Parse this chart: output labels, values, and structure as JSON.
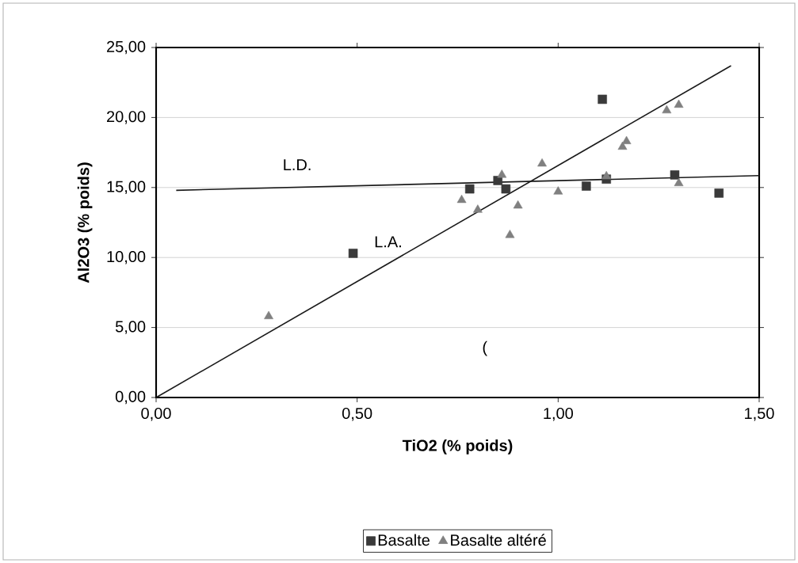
{
  "chart_data": {
    "type": "scatter",
    "xlabel": "TiO2 (% poids)",
    "ylabel": "Al2O3 (% poids)",
    "xlim": [
      0,
      1.5
    ],
    "ylim": [
      0,
      25
    ],
    "xticks": [
      {
        "value": 0,
        "label": "0,00"
      },
      {
        "value": 0.5,
        "label": "0,50"
      },
      {
        "value": 1,
        "label": "1,00"
      },
      {
        "value": 1.5,
        "label": "1,50"
      }
    ],
    "yticks": [
      {
        "value": 0,
        "label": "0,00"
      },
      {
        "value": 5,
        "label": "5,00"
      },
      {
        "value": 10,
        "label": "10,00"
      },
      {
        "value": 15,
        "label": "15,00"
      },
      {
        "value": 20,
        "label": "20,00"
      },
      {
        "value": 25,
        "label": "25,00"
      }
    ],
    "grid": "y",
    "legend": "bottom",
    "series": [
      {
        "name": "Basalte",
        "color": "#3a3a3a",
        "marker": "square",
        "x": [
          0.49,
          0.78,
          0.85,
          0.87,
          1.07,
          1.12,
          1.29,
          1.4,
          1.11
        ],
        "values": [
          10.3,
          14.9,
          15.5,
          14.9,
          15.1,
          15.6,
          15.9,
          14.6,
          21.3
        ]
      },
      {
        "name": "Basalte altéré",
        "color": "#808080",
        "marker": "triangle",
        "x": [
          0.28,
          0.76,
          0.8,
          0.86,
          0.88,
          0.9,
          0.96,
          1.0,
          1.12,
          1.16,
          1.17,
          1.27,
          1.3,
          1.3
        ],
        "values": [
          5.8,
          14.1,
          13.4,
          15.9,
          11.6,
          13.7,
          16.7,
          14.7,
          15.8,
          17.9,
          18.3,
          20.5,
          20.9,
          15.3
        ]
      },
      {
        "name": "L.D.",
        "type": "line",
        "color": "#1a1a1a",
        "marker": "none",
        "x": [
          0.05,
          1.5
        ],
        "values": [
          14.8,
          15.85
        ]
      },
      {
        "name": "L.A.",
        "type": "line",
        "color": "#1a1a1a",
        "marker": "none",
        "x": [
          0,
          1.43
        ],
        "values": [
          0,
          23.7
        ]
      }
    ],
    "annotations": [
      "("
    ]
  }
}
